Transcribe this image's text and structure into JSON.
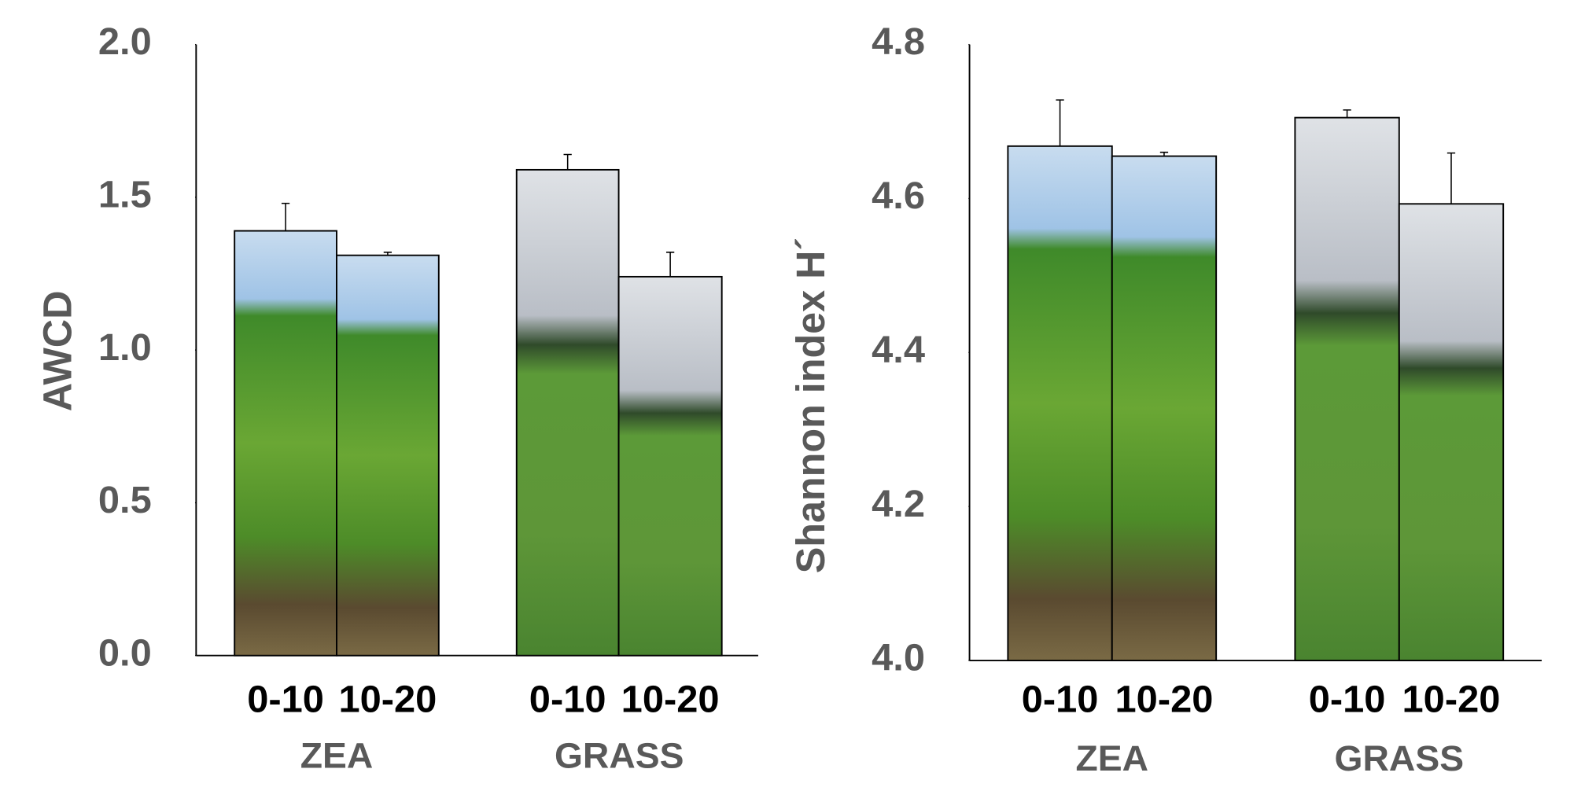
{
  "chart_data": [
    {
      "type": "bar",
      "y_label": "AWCD",
      "categories": [
        "0-10",
        "10-20",
        "0-10",
        "10-20"
      ],
      "groups": [
        "ZEA",
        "GRASS"
      ],
      "values": [
        1.39,
        1.31,
        1.59,
        1.24
      ],
      "errors": [
        0.09,
        0.01,
        0.05,
        0.08
      ],
      "ylim": [
        0,
        2
      ],
      "yticks": [
        {
          "value": 0,
          "label": "0.0"
        },
        0.5,
        {
          "value": 1,
          "label": "1.0"
        },
        1.5,
        {
          "value": 2,
          "label": "2.0"
        }
      ]
    },
    {
      "type": "bar",
      "y_label": "Shannon  index H´",
      "categories": [
        "0-10",
        "10-20",
        "0-10",
        "10-20"
      ],
      "groups": [
        "ZEA",
        "GRASS"
      ],
      "values": [
        4.668,
        4.655,
        4.705,
        4.593
      ],
      "errors": [
        0.06,
        0.005,
        0.01,
        0.066
      ],
      "ylim": [
        4,
        4.8
      ],
      "yticks": [
        {
          "value": 4,
          "label": "4.0"
        },
        4.2,
        4.4,
        4.6,
        4.8
      ]
    }
  ]
}
